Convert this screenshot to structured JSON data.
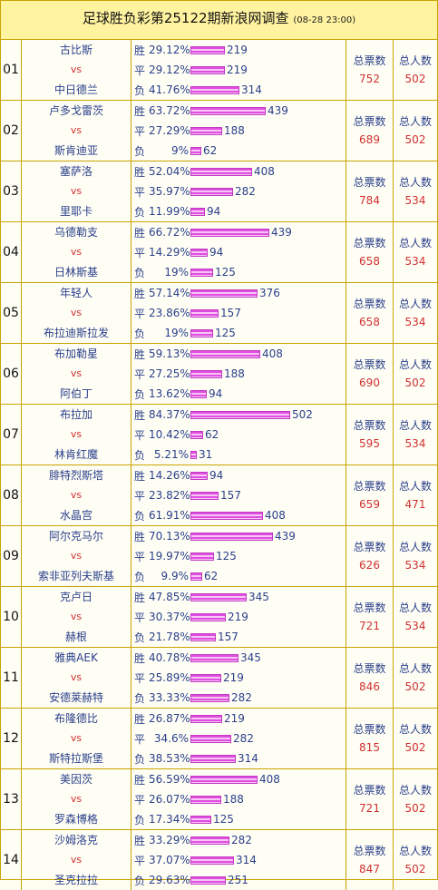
{
  "header": {
    "title": "足球胜负彩第25122期新浪网调查",
    "date": "(08-28 23:00)"
  },
  "labels": {
    "win": "胜",
    "draw": "平",
    "lose": "负",
    "vs": "vs",
    "total_votes": "总票数",
    "total_people": "总人数"
  },
  "matches": [
    {
      "num": "01",
      "home": "古比斯",
      "away": "中日德兰",
      "win": {
        "pct": "29.12%",
        "count": "219"
      },
      "draw": {
        "pct": "29.12%",
        "count": "219"
      },
      "lose": {
        "pct": "41.76%",
        "count": "314"
      },
      "votes": "752",
      "people": "502"
    },
    {
      "num": "02",
      "home": "卢多戈雷茨",
      "away": "斯肯迪亚",
      "win": {
        "pct": "63.72%",
        "count": "439"
      },
      "draw": {
        "pct": "27.29%",
        "count": "188"
      },
      "lose": {
        "pct": "9%",
        "count": "62"
      },
      "votes": "689",
      "people": "502"
    },
    {
      "num": "03",
      "home": "塞萨洛",
      "away": "里耶卡",
      "win": {
        "pct": "52.04%",
        "count": "408"
      },
      "draw": {
        "pct": "35.97%",
        "count": "282"
      },
      "lose": {
        "pct": "11.99%",
        "count": "94"
      },
      "votes": "784",
      "people": "534"
    },
    {
      "num": "04",
      "home": "乌德勒支",
      "away": "日林斯基",
      "win": {
        "pct": "66.72%",
        "count": "439"
      },
      "draw": {
        "pct": "14.29%",
        "count": "94"
      },
      "lose": {
        "pct": "19%",
        "count": "125"
      },
      "votes": "658",
      "people": "534"
    },
    {
      "num": "05",
      "home": "年轻人",
      "away": "布拉迪斯拉发",
      "win": {
        "pct": "57.14%",
        "count": "376"
      },
      "draw": {
        "pct": "23.86%",
        "count": "157"
      },
      "lose": {
        "pct": "19%",
        "count": "125"
      },
      "votes": "658",
      "people": "534"
    },
    {
      "num": "06",
      "home": "布加勒星",
      "away": "阿伯丁",
      "win": {
        "pct": "59.13%",
        "count": "408"
      },
      "draw": {
        "pct": "27.25%",
        "count": "188"
      },
      "lose": {
        "pct": "13.62%",
        "count": "94"
      },
      "votes": "690",
      "people": "502"
    },
    {
      "num": "07",
      "home": "布拉加",
      "away": "林肯红魔",
      "win": {
        "pct": "84.37%",
        "count": "502"
      },
      "draw": {
        "pct": "10.42%",
        "count": "62"
      },
      "lose": {
        "pct": "5.21%",
        "count": "31"
      },
      "votes": "595",
      "people": "534"
    },
    {
      "num": "08",
      "home": "腓特烈斯塔",
      "away": "水晶宫",
      "win": {
        "pct": "14.26%",
        "count": "94"
      },
      "draw": {
        "pct": "23.82%",
        "count": "157"
      },
      "lose": {
        "pct": "61.91%",
        "count": "408"
      },
      "votes": "659",
      "people": "471"
    },
    {
      "num": "09",
      "home": "阿尔克马尔",
      "away": "索非亚列夫斯基",
      "win": {
        "pct": "70.13%",
        "count": "439"
      },
      "draw": {
        "pct": "19.97%",
        "count": "125"
      },
      "lose": {
        "pct": "9.9%",
        "count": "62"
      },
      "votes": "626",
      "people": "534"
    },
    {
      "num": "10",
      "home": "克卢日",
      "away": "赫根",
      "win": {
        "pct": "47.85%",
        "count": "345"
      },
      "draw": {
        "pct": "30.37%",
        "count": "219"
      },
      "lose": {
        "pct": "21.78%",
        "count": "157"
      },
      "votes": "721",
      "people": "534"
    },
    {
      "num": "11",
      "home": "雅典AEK",
      "away": "安德莱赫特",
      "win": {
        "pct": "40.78%",
        "count": "345"
      },
      "draw": {
        "pct": "25.89%",
        "count": "219"
      },
      "lose": {
        "pct": "33.33%",
        "count": "282"
      },
      "votes": "846",
      "people": "502"
    },
    {
      "num": "12",
      "home": "布隆德比",
      "away": "斯特拉斯堡",
      "win": {
        "pct": "26.87%",
        "count": "219"
      },
      "draw": {
        "pct": "34.6%",
        "count": "282"
      },
      "lose": {
        "pct": "38.53%",
        "count": "314"
      },
      "votes": "815",
      "people": "502"
    },
    {
      "num": "13",
      "home": "美因茨",
      "away": "罗森博格",
      "win": {
        "pct": "56.59%",
        "count": "408"
      },
      "draw": {
        "pct": "26.07%",
        "count": "188"
      },
      "lose": {
        "pct": "17.34%",
        "count": "125"
      },
      "votes": "721",
      "people": "502"
    },
    {
      "num": "14",
      "home": "沙姆洛克",
      "away": "圣克拉拉",
      "win": {
        "pct": "33.29%",
        "count": "282"
      },
      "draw": {
        "pct": "37.07%",
        "count": "314"
      },
      "lose": {
        "pct": "29.63%",
        "count": "251"
      },
      "votes": "847",
      "people": "502"
    }
  ]
}
